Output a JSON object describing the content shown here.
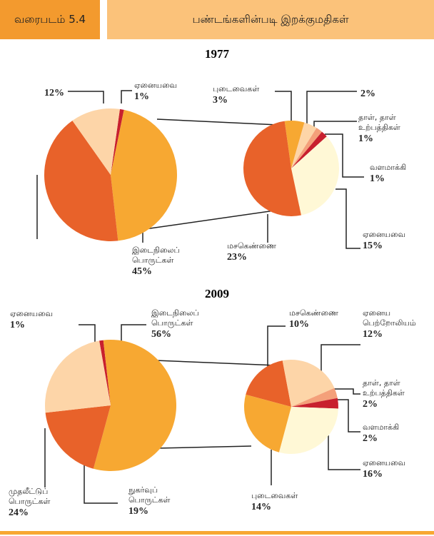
{
  "header": {
    "figure": "வரைபடம் 5.4",
    "title": "பண்டங்களின்படி இறக்குமதிகள்"
  },
  "chart_data": [
    {
      "type": "pie",
      "title": "1977",
      "categories": [
        "ஏனையவை",
        "இடைநிலைப் பொருட்கள்",
        null,
        null
      ],
      "values": [
        1,
        45,
        42,
        12
      ],
      "value_labels": [
        "1%",
        "45%",
        null,
        "12%"
      ],
      "colors": [
        "#c8202e",
        "#f7a832",
        "#e8622a",
        "#fdd5a8"
      ]
    },
    {
      "type": "pie",
      "categories": [
        "புடைவைகள்",
        null,
        "தாள், தாள் உற்பத்திகள்",
        "வளமாக்கி",
        "ஏனையவை",
        "மசகெண்ணை"
      ],
      "values": [
        3,
        2,
        1,
        1,
        15,
        23
      ],
      "value_labels": [
        "3%",
        "2%",
        "1%",
        "1%",
        "15%",
        "23%"
      ],
      "colors": [
        "#f7a832",
        "#fdd5a8",
        "#f4a07a",
        "#c8202e",
        "#fff8d6",
        "#e8622a"
      ]
    },
    {
      "type": "pie",
      "title": "2009",
      "categories": [
        "ஏனையவை",
        "இடைநிலைப் பொருட்கள்",
        "நுகர்வுப் பொருட்கள்",
        "முதலீட்டுப் பொருட்கள்"
      ],
      "values": [
        1,
        56,
        19,
        24
      ],
      "value_labels": [
        "1%",
        "56%",
        "19%",
        "24%"
      ],
      "colors": [
        "#c8202e",
        "#f7a832",
        "#e8622a",
        "#fdd5a8"
      ]
    },
    {
      "type": "pie",
      "categories": [
        "மசகெண்ணை",
        "ஏனைய பெற்றோலியம்",
        "தாள், தாள் உற்பத்திகள்",
        "வளமாக்கி",
        "ஏனையவை",
        "புடைவைகள்"
      ],
      "values": [
        10,
        12,
        2,
        2,
        16,
        14
      ],
      "value_labels": [
        "10%",
        "12%",
        "2%",
        "2%",
        "16%",
        "14%"
      ],
      "colors": [
        "#e8622a",
        "#fdd5a8",
        "#f4a07a",
        "#c8202e",
        "#fff8d6",
        "#f7a832"
      ]
    }
  ]
}
